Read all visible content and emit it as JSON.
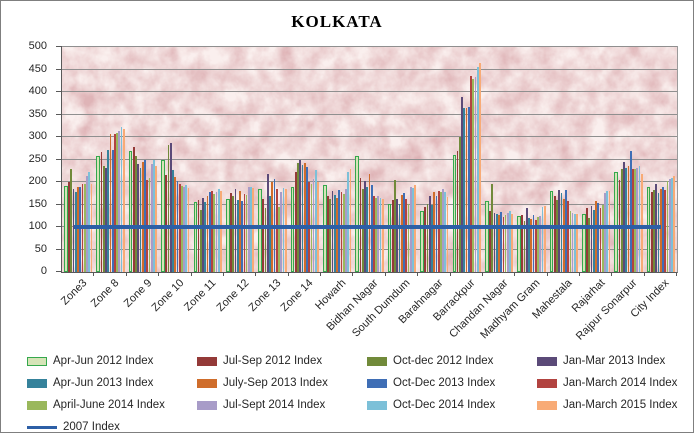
{
  "title": "KOLKATA",
  "chart_data": {
    "type": "bar",
    "title": "KOLKATA",
    "xlabel": "",
    "ylabel": "",
    "ylim": [
      0,
      500
    ],
    "ytick_step": 50,
    "yticks": [
      "0",
      "50",
      "100",
      "150",
      "200",
      "250",
      "300",
      "350",
      "400",
      "450",
      "500"
    ],
    "grid": "horizontal",
    "legend_position": "bottom",
    "plot_bg_color": "#dfb4b7",
    "gridline_color": "#8f8f8f",
    "axis_color": "#595959",
    "categories": [
      "Zone3",
      "Zone 8",
      "Zone 9",
      "Zone 10",
      "Zone 11",
      "Zone 12",
      "Zone 13",
      "Zone 14",
      "Howarh",
      "Bidhan Nagar",
      "South Dumdum",
      "Barahnagar",
      "Barrackpur",
      "Chandan Nagar",
      "Madhyam Gram",
      "Mahestala",
      "Rajarhat",
      "Rajpur Sonarpur",
      "City Index"
    ],
    "series": [
      {
        "name": "Apr-Jun 2012 Index",
        "color": "#d6e4b8",
        "border_color": "#35a84d",
        "values": [
          192,
          258,
          268,
          250,
          155,
          163,
          184,
          189,
          193,
          257,
          152,
          135,
          260,
          158,
          124,
          180,
          128,
          222,
          190
        ]
      },
      {
        "name": "Jul-Sep 2012 Index",
        "color": "#943a38",
        "values": [
          200,
          266,
          278,
          216,
          159,
          176,
          163,
          222,
          168,
          208,
          160,
          145,
          270,
          136,
          127,
          170,
          142,
          205,
          178
        ]
      },
      {
        "name": "Oct-dec 2012 Index",
        "color": "#718a3a",
        "values": [
          230,
          235,
          258,
          282,
          137,
          169,
          142,
          243,
          162,
          185,
          205,
          152,
          300,
          195,
          113,
          160,
          120,
          230,
          182
        ]
      },
      {
        "name": "Jan-Mar 2013 Index",
        "color": "#5b4a78",
        "values": [
          185,
          231,
          240,
          287,
          164,
          184,
          218,
          248,
          180,
          202,
          163,
          168,
          388,
          132,
          143,
          183,
          146,
          245,
          195
        ]
      },
      {
        "name": "Apr-Jun 2013 Index",
        "color": "#35829b",
        "values": [
          178,
          271,
          232,
          227,
          155,
          159,
          170,
          237,
          172,
          190,
          152,
          148,
          365,
          128,
          119,
          175,
          138,
          232,
          175
        ]
      },
      {
        "name": "July-Sep 2013 Index",
        "color": "#cf6d2b",
        "values": [
          189,
          306,
          245,
          212,
          170,
          181,
          199,
          243,
          164,
          218,
          172,
          178,
          365,
          126,
          117,
          163,
          157,
          235,
          185
        ]
      },
      {
        "name": "Oct-Dec 2013 Index",
        "color": "#3f6eb5",
        "values": [
          189,
          272,
          250,
          202,
          177,
          157,
          207,
          233,
          183,
          193,
          175,
          170,
          367,
          133,
          126,
          183,
          153,
          268,
          190
        ]
      },
      {
        "name": "Jan-March 2014 Index",
        "color": "#b24340",
        "values": [
          196,
          306,
          205,
          196,
          181,
          174,
          184,
          200,
          177,
          168,
          163,
          180,
          436,
          122,
          115,
          158,
          142,
          230,
          182
        ]
      },
      {
        "name": "April-June 2014 Index",
        "color": "#9ab85c",
        "values": [
          196,
          310,
          210,
          191,
          173,
          172,
          144,
          196,
          174,
          165,
          152,
          178,
          430,
          126,
          123,
          135,
          150,
          228,
          203
        ]
      },
      {
        "name": "Jul-Sept 2014 Index",
        "color": "#a89cc8",
        "values": [
          213,
          313,
          240,
          188,
          177,
          190,
          177,
          207,
          185,
          168,
          190,
          185,
          434,
          131,
          124,
          132,
          176,
          232,
          206
        ]
      },
      {
        "name": "Oct-Dec 2014 Index",
        "color": "#7cc0d8",
        "values": [
          223,
          322,
          248,
          194,
          184,
          188,
          186,
          226,
          222,
          165,
          186,
          178,
          456,
          136,
          144,
          128,
          180,
          235,
          210
        ]
      },
      {
        "name": "Jan-March 2015 Index",
        "color": "#f8ab76",
        "values": [
          196,
          318,
          235,
          186,
          181,
          186,
          184,
          201,
          228,
          162,
          193,
          167,
          464,
          129,
          147,
          130,
          181,
          218,
          213
        ]
      }
    ],
    "line_series": {
      "name": "2007 Index",
      "color": "#2d5fa6",
      "value": 100
    }
  }
}
